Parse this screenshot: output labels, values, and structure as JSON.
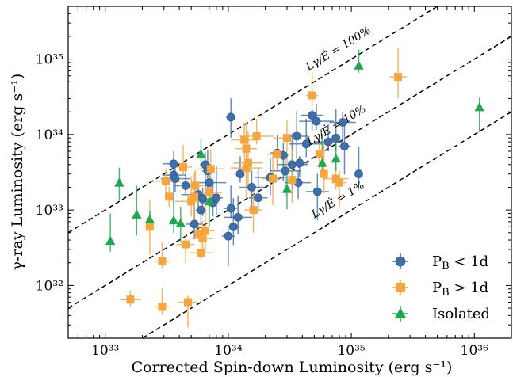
{
  "chart_data": {
    "type": "scatter",
    "xlabel": "Corrected Spin-down Luminosity (erg s⁻¹)",
    "ylabel": "γ-ray Luminosity (erg s⁻¹)",
    "xscale": "log",
    "yscale": "log",
    "xlim": [
      5e+32,
      2e+36
    ],
    "ylim": [
      2e+31,
      5e+35
    ],
    "x_ticks": [
      {
        "value": 1e+33,
        "label": "10³³"
      },
      {
        "value": 1e+34,
        "label": "10³⁴"
      },
      {
        "value": 1e+35,
        "label": "10³⁵"
      },
      {
        "value": 1e+36,
        "label": "10³⁶"
      }
    ],
    "y_ticks": [
      {
        "value": 1e+32,
        "label": "10³²"
      },
      {
        "value": 1e+33,
        "label": "10³³"
      },
      {
        "value": 1e+34,
        "label": "10³⁴"
      },
      {
        "value": 1e+35,
        "label": "10³⁵"
      }
    ],
    "grid": false,
    "legend_position": "bottom-right",
    "efficiency_lines": [
      {
        "label": "Lγ/Ė = 100%",
        "fraction": 1.0
      },
      {
        "label": "Lγ/Ė = 10%",
        "fraction": 0.1
      },
      {
        "label": "Lγ/Ė = 1%",
        "fraction": 0.01
      }
    ],
    "series": [
      {
        "name": "P_B < 1d",
        "legend_label": "P",
        "legend_sub": "B",
        "legend_rest": " < 1d",
        "marker": "circle",
        "color": "#3f6fa9",
        "points": [
          {
            "x": 1.05e+34,
            "y": 1.7e+34
          },
          {
            "x": 3.6e+33,
            "y": 4.1e+33
          },
          {
            "x": 3.6e+33,
            "y": 2.9e+33
          },
          {
            "x": 3.7e+33,
            "y": 2.6e+33
          },
          {
            "x": 4.5e+33,
            "y": 2.1e+33
          },
          {
            "x": 6.5e+33,
            "y": 4e+33
          },
          {
            "x": 6.8e+33,
            "y": 3.3e+33
          },
          {
            "x": 7e+33,
            "y": 2.3e+33
          },
          {
            "x": 5.7e+33,
            "y": 1.6e+33
          },
          {
            "x": 6.2e+33,
            "y": 1.4e+33
          },
          {
            "x": 7.5e+33,
            "y": 1.25e+33
          },
          {
            "x": 8e+33,
            "y": 1.45e+33
          },
          {
            "x": 6e+33,
            "y": 1e+33
          },
          {
            "x": 5.3e+33,
            "y": 6.5e+32
          },
          {
            "x": 1e+34,
            "y": 4.5e+32
          },
          {
            "x": 1.1e+34,
            "y": 6e+32
          },
          {
            "x": 1.2e+34,
            "y": 8e+32
          },
          {
            "x": 1.05e+34,
            "y": 1.05e+33
          },
          {
            "x": 1.25e+34,
            "y": 3e+33
          },
          {
            "x": 1.55e+34,
            "y": 2e+33
          },
          {
            "x": 1.75e+34,
            "y": 1.45e+33
          },
          {
            "x": 2.2e+34,
            "y": 2.7e+33
          },
          {
            "x": 2.5e+34,
            "y": 5.7e+33
          },
          {
            "x": 2.8e+34,
            "y": 5.3e+33
          },
          {
            "x": 2.9e+34,
            "y": 3.3e+33
          },
          {
            "x": 3.3e+34,
            "y": 4e+33
          },
          {
            "x": 3.6e+34,
            "y": 9.5e+33
          },
          {
            "x": 3.8e+34,
            "y": 4.2e+33
          },
          {
            "x": 3.7e+34,
            "y": 2.3e+33
          },
          {
            "x": 4.3e+34,
            "y": 7.5e+33
          },
          {
            "x": 4.8e+34,
            "y": 1.8e+34
          },
          {
            "x": 5.2e+34,
            "y": 1.5e+34
          },
          {
            "x": 5.3e+34,
            "y": 1.75e+33
          },
          {
            "x": 6.5e+34,
            "y": 8e+33
          },
          {
            "x": 7.5e+34,
            "y": 9e+33
          },
          {
            "x": 8.5e+34,
            "y": 1.45e+34
          },
          {
            "x": 8.8e+34,
            "y": 7e+33
          },
          {
            "x": 1.15e+35,
            "y": 3e+33
          }
        ]
      },
      {
        "name": "P_B > 1d",
        "legend_label": "P",
        "legend_sub": "B",
        "legend_rest": " > 1d",
        "marker": "square",
        "color": "#f6a53f",
        "points": [
          {
            "x": 1.6e+33,
            "y": 6.5e+31
          },
          {
            "x": 2.3e+33,
            "y": 6e+32
          },
          {
            "x": 2.9e+33,
            "y": 2.1e+32
          },
          {
            "x": 2.9e+33,
            "y": 5.2e+31
          },
          {
            "x": 3.1e+33,
            "y": 2.4e+33
          },
          {
            "x": 3.3e+33,
            "y": 1.5e+33
          },
          {
            "x": 4.3e+33,
            "y": 3.7e+33
          },
          {
            "x": 4.5e+33,
            "y": 3.5e+32
          },
          {
            "x": 4.7e+33,
            "y": 6e+31
          },
          {
            "x": 5e+33,
            "y": 1.3e+33
          },
          {
            "x": 5.3e+33,
            "y": 1.5e+33
          },
          {
            "x": 5.4e+33,
            "y": 2.1e+33
          },
          {
            "x": 5.8e+33,
            "y": 4.8e+32
          },
          {
            "x": 6e+33,
            "y": 2.7e+32
          },
          {
            "x": 6.2e+33,
            "y": 4.2e+32
          },
          {
            "x": 6.5e+33,
            "y": 5.3e+32
          },
          {
            "x": 7e+33,
            "y": 1.7e+33
          },
          {
            "x": 7.2e+33,
            "y": 3.5e+33
          },
          {
            "x": 1.4e+34,
            "y": 3.6e+33
          },
          {
            "x": 1.35e+34,
            "y": 8.5e+33
          },
          {
            "x": 1.4e+34,
            "y": 6.5e+33
          },
          {
            "x": 1.45e+34,
            "y": 4.2e+33
          },
          {
            "x": 1.7e+34,
            "y": 9.5e+33
          },
          {
            "x": 1.6e+34,
            "y": 1e+33
          },
          {
            "x": 2.3e+34,
            "y": 2.6e+33
          },
          {
            "x": 3e+34,
            "y": 9e+33
          },
          {
            "x": 2.5e+34,
            "y": 5.5e+33
          },
          {
            "x": 3.3e+34,
            "y": 2.5e+33
          },
          {
            "x": 4.8e+34,
            "y": 3.3e+34
          },
          {
            "x": 5.5e+34,
            "y": 5.5e+33
          },
          {
            "x": 6e+34,
            "y": 3e+33
          },
          {
            "x": 7.5e+34,
            "y": 2.6e+33
          },
          {
            "x": 8e+34,
            "y": 2.3e+33
          },
          {
            "x": 2.4e+35,
            "y": 5.8e+34
          }
        ]
      },
      {
        "name": "Isolated",
        "legend_label": "Isolated",
        "marker": "triangle",
        "color": "#1fa84f",
        "points": [
          {
            "x": 1.1e+33,
            "y": 3.9e+32
          },
          {
            "x": 1.3e+33,
            "y": 2.3e+33
          },
          {
            "x": 1.8e+33,
            "y": 8.7e+32
          },
          {
            "x": 2.3e+33,
            "y": 7.5e+32
          },
          {
            "x": 3.6e+33,
            "y": 7.3e+32
          },
          {
            "x": 4.1e+33,
            "y": 6.7e+32
          },
          {
            "x": 6e+33,
            "y": 5.5e+33
          },
          {
            "x": 7e+33,
            "y": 1.3e+33
          },
          {
            "x": 3e+34,
            "y": 1.9e+33
          },
          {
            "x": 5.8e+34,
            "y": 4.2e+33
          },
          {
            "x": 7.5e+34,
            "y": 4.8e+33
          },
          {
            "x": 1.15e+35,
            "y": 8.2e+34
          },
          {
            "x": 1.1e+36,
            "y": 2.3e+34
          }
        ]
      }
    ]
  }
}
